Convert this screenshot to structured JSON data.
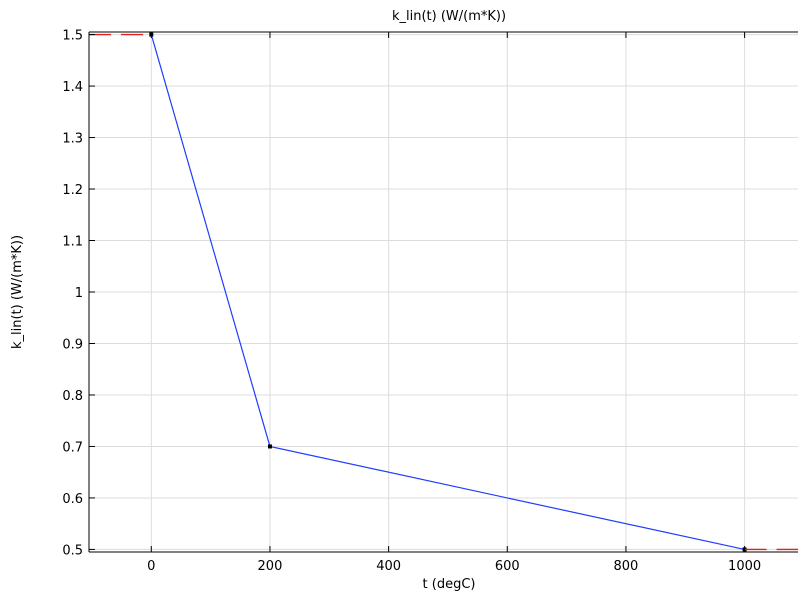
{
  "chart_data": {
    "type": "line",
    "title": "k_lin(t) (W/(m*K))",
    "xlabel": "t (degC)",
    "ylabel": "k_lin(t) (W/(m*K))",
    "xlim": [
      -105,
      1090
    ],
    "ylim": [
      0.495,
      1.505
    ],
    "xticks": [
      0,
      200,
      400,
      600,
      800,
      1000
    ],
    "xtick_labels": [
      "0",
      "200",
      "400",
      "600",
      "800",
      "1000"
    ],
    "yticks": [
      0.5,
      0.6,
      0.7,
      0.8,
      0.9,
      1.0,
      1.1,
      1.2,
      1.3,
      1.4,
      1.5
    ],
    "ytick_labels": [
      "0.5",
      "0.6",
      "0.7",
      "0.8",
      "0.9",
      "1",
      "1.1",
      "1.2",
      "1.3",
      "1.4",
      "1.5"
    ],
    "grid": true,
    "series": [
      {
        "color": "#1f3dff",
        "style": "solid",
        "x": [
          0,
          200,
          1000
        ],
        "y": [
          1.5,
          0.7,
          0.5
        ],
        "markers": true
      },
      {
        "color": "#e02020",
        "style": "dashed",
        "x": [
          -105,
          0
        ],
        "y": [
          1.5,
          1.5
        ]
      },
      {
        "color": "#e02020",
        "style": "dashed",
        "x": [
          1000,
          1090
        ],
        "y": [
          0.5,
          0.5
        ]
      }
    ]
  }
}
